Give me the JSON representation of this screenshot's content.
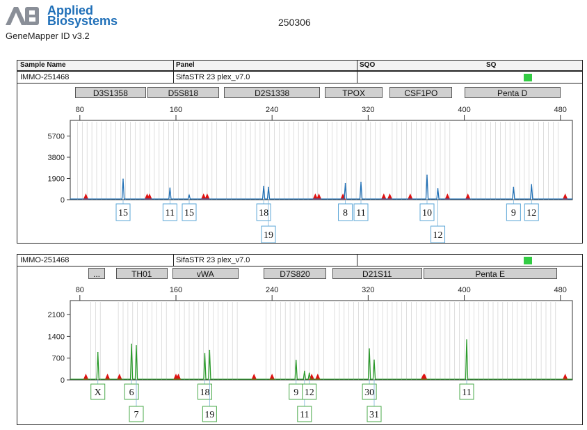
{
  "header": {
    "logo_line1": "Applied",
    "logo_line2": "Biosystems",
    "software": "GeneMapper ID v3.2",
    "run_id": "250306"
  },
  "table": {
    "col_sample": "Sample Name",
    "col_panel": "Panel",
    "col_sqo": "SQO",
    "col_sq": "SQ"
  },
  "colors": {
    "blue": "#1f6fb5",
    "green": "#2a9a2a",
    "sizing_peak": "#e01010",
    "sq_pass": "#33cc44",
    "marker_fill": "#d0d0d0"
  },
  "chart_data": [
    {
      "type": "line",
      "dye": "blue",
      "sample": "IMMO-251468",
      "panel": "SifaSTR 23 plex_v7.0",
      "x_ticks": [
        80,
        160,
        240,
        320,
        400,
        480
      ],
      "y_ticks": [
        0,
        1900,
        3800,
        5700
      ],
      "xlim": [
        72,
        490
      ],
      "ylim": [
        0,
        7100
      ],
      "markers": [
        {
          "name": "D3S1358",
          "start": 76,
          "end": 135
        },
        {
          "name": "D5S818",
          "start": 136,
          "end": 196
        },
        {
          "name": "D2S1338",
          "start": 200,
          "end": 280
        },
        {
          "name": "TPOX",
          "start": 284,
          "end": 332
        },
        {
          "name": "CSF1PO",
          "start": 338,
          "end": 390
        },
        {
          "name": "Penta D",
          "start": 400,
          "end": 480
        }
      ],
      "peaks": [
        {
          "x": 116,
          "height": 1850
        },
        {
          "x": 155,
          "height": 1050
        },
        {
          "x": 171,
          "height": 400
        },
        {
          "x": 233,
          "height": 1200
        },
        {
          "x": 237,
          "height": 1100
        },
        {
          "x": 301,
          "height": 1450
        },
        {
          "x": 314,
          "height": 1550
        },
        {
          "x": 369,
          "height": 2200
        },
        {
          "x": 378,
          "height": 1000
        },
        {
          "x": 441,
          "height": 1100
        },
        {
          "x": 456,
          "height": 1350
        }
      ],
      "sizing_peaks": [
        85,
        136,
        138,
        183,
        186,
        276,
        279,
        299,
        333,
        338,
        355,
        386,
        403,
        484
      ],
      "allele_labels": [
        {
          "text": "15",
          "x": 116,
          "row": 1
        },
        {
          "text": "11",
          "x": 155,
          "row": 1
        },
        {
          "text": "15",
          "x": 171,
          "row": 1
        },
        {
          "text": "18",
          "x": 233,
          "row": 1
        },
        {
          "text": "19",
          "x": 237,
          "row": 2
        },
        {
          "text": "8",
          "x": 301,
          "row": 1
        },
        {
          "text": "11",
          "x": 314,
          "row": 1
        },
        {
          "text": "10",
          "x": 369,
          "row": 1
        },
        {
          "text": "12",
          "x": 378,
          "row": 2
        },
        {
          "text": "9",
          "x": 441,
          "row": 1
        },
        {
          "text": "12",
          "x": 456,
          "row": 1
        }
      ]
    },
    {
      "type": "line",
      "dye": "green",
      "sample": "IMMO-251468",
      "panel": "SifaSTR 23 plex_v7.0",
      "x_ticks": [
        80,
        160,
        240,
        320,
        400,
        480
      ],
      "y_ticks": [
        0,
        700,
        1400,
        2100
      ],
      "xlim": [
        72,
        490
      ],
      "ylim": [
        0,
        2550
      ],
      "markers": [
        {
          "name": "...",
          "start": 87,
          "end": 101
        },
        {
          "name": "TH01",
          "start": 110,
          "end": 153
        },
        {
          "name": "vWA",
          "start": 157,
          "end": 212
        },
        {
          "name": "D7S820",
          "start": 233,
          "end": 285
        },
        {
          "name": "D21S11",
          "start": 290,
          "end": 365
        },
        {
          "name": "Penta E",
          "start": 366,
          "end": 477
        }
      ],
      "peaks": [
        {
          "x": 95,
          "height": 880
        },
        {
          "x": 123,
          "height": 1150
        },
        {
          "x": 127,
          "height": 1100
        },
        {
          "x": 184,
          "height": 850
        },
        {
          "x": 188,
          "height": 950
        },
        {
          "x": 260,
          "height": 630
        },
        {
          "x": 267,
          "height": 280
        },
        {
          "x": 271,
          "height": 220
        },
        {
          "x": 321,
          "height": 1000
        },
        {
          "x": 325,
          "height": 640
        },
        {
          "x": 402,
          "height": 1290
        }
      ],
      "sizing_peaks": [
        85,
        103,
        113,
        160,
        162,
        225,
        240,
        273,
        278,
        366,
        367,
        484
      ],
      "allele_labels": [
        {
          "text": "X",
          "x": 95,
          "row": 1
        },
        {
          "text": "6",
          "x": 123,
          "row": 1
        },
        {
          "text": "7",
          "x": 127,
          "row": 2
        },
        {
          "text": "18",
          "x": 184,
          "row": 1
        },
        {
          "text": "19",
          "x": 188,
          "row": 2
        },
        {
          "text": "9",
          "x": 260,
          "row": 1
        },
        {
          "text": "11",
          "x": 267,
          "row": 2
        },
        {
          "text": "12",
          "x": 271,
          "row": 1
        },
        {
          "text": "30",
          "x": 321,
          "row": 1
        },
        {
          "text": "31",
          "x": 325,
          "row": 2
        },
        {
          "text": "11",
          "x": 402,
          "row": 1
        }
      ]
    }
  ]
}
